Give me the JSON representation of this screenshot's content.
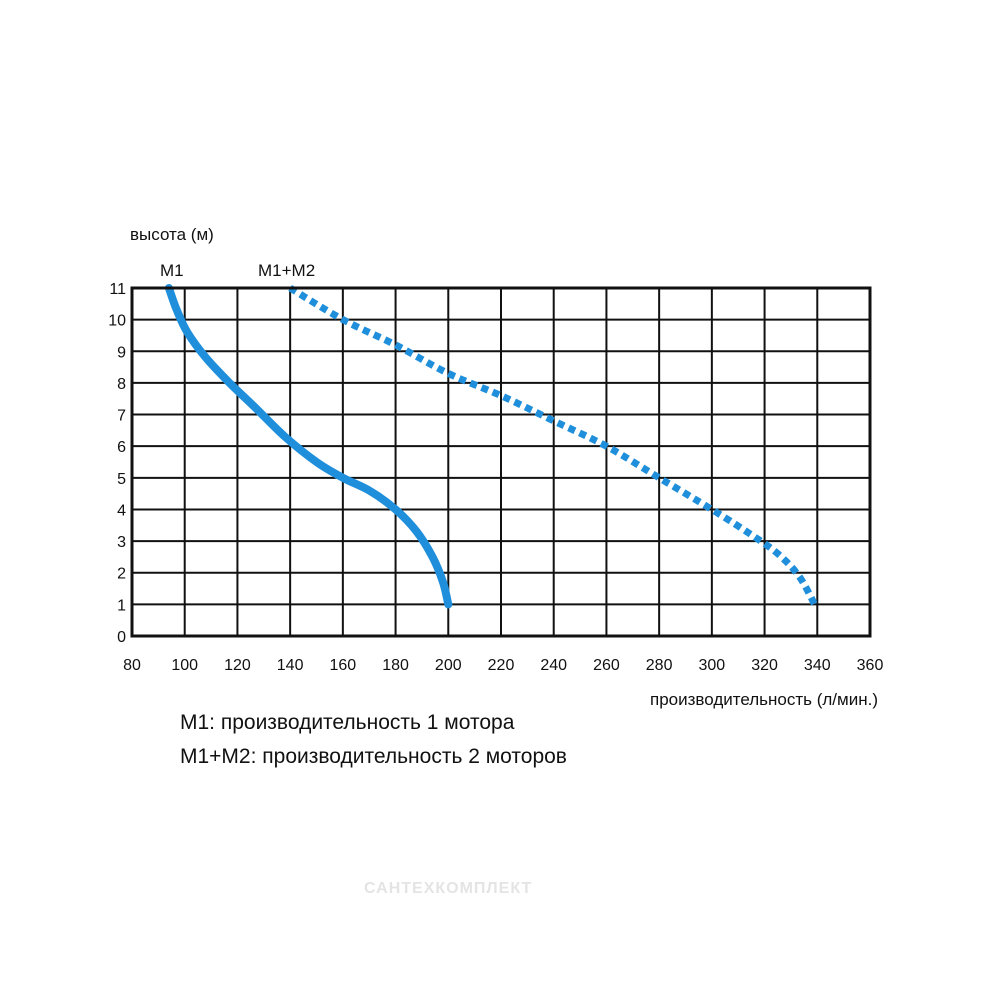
{
  "chart_data": {
    "type": "line",
    "ylabel": "высота (м)",
    "xlabel": "производительность (л/мин.)",
    "x_ticks": [
      80,
      100,
      120,
      140,
      160,
      180,
      200,
      220,
      240,
      260,
      280,
      300,
      320,
      340,
      360
    ],
    "y_ticks": [
      0,
      1,
      2,
      3,
      4,
      5,
      6,
      7,
      8,
      9,
      10,
      11
    ],
    "xlim": [
      80,
      360
    ],
    "ylim": [
      0,
      11
    ],
    "grid": true,
    "series": [
      {
        "name": "M1",
        "style": "solid",
        "color": "#1f8fdc",
        "x": [
          94,
          97,
          101,
          108,
          117,
          127,
          138,
          150,
          160,
          170,
          180,
          188,
          194,
          198,
          200
        ],
        "y": [
          11,
          10.3,
          9.6,
          8.8,
          8,
          7.2,
          6.3,
          5.5,
          5,
          4.6,
          4,
          3.3,
          2.5,
          1.7,
          1
        ]
      },
      {
        "name": "M1+M2",
        "style": "dotted",
        "color": "#1f8fdc",
        "x": [
          140,
          160,
          180,
          200,
          220,
          240,
          260,
          280,
          300,
          315,
          325,
          333,
          339
        ],
        "y": [
          11,
          10,
          9.2,
          8.3,
          7.6,
          6.8,
          6,
          5,
          4,
          3.2,
          2.6,
          1.9,
          1
        ]
      }
    ]
  },
  "legend": {
    "m1": "M1: производительность 1 мотора",
    "m12": "M1+M2: производительность 2 моторов"
  },
  "watermark": "САНТЕХКОМПЛЕКТ"
}
